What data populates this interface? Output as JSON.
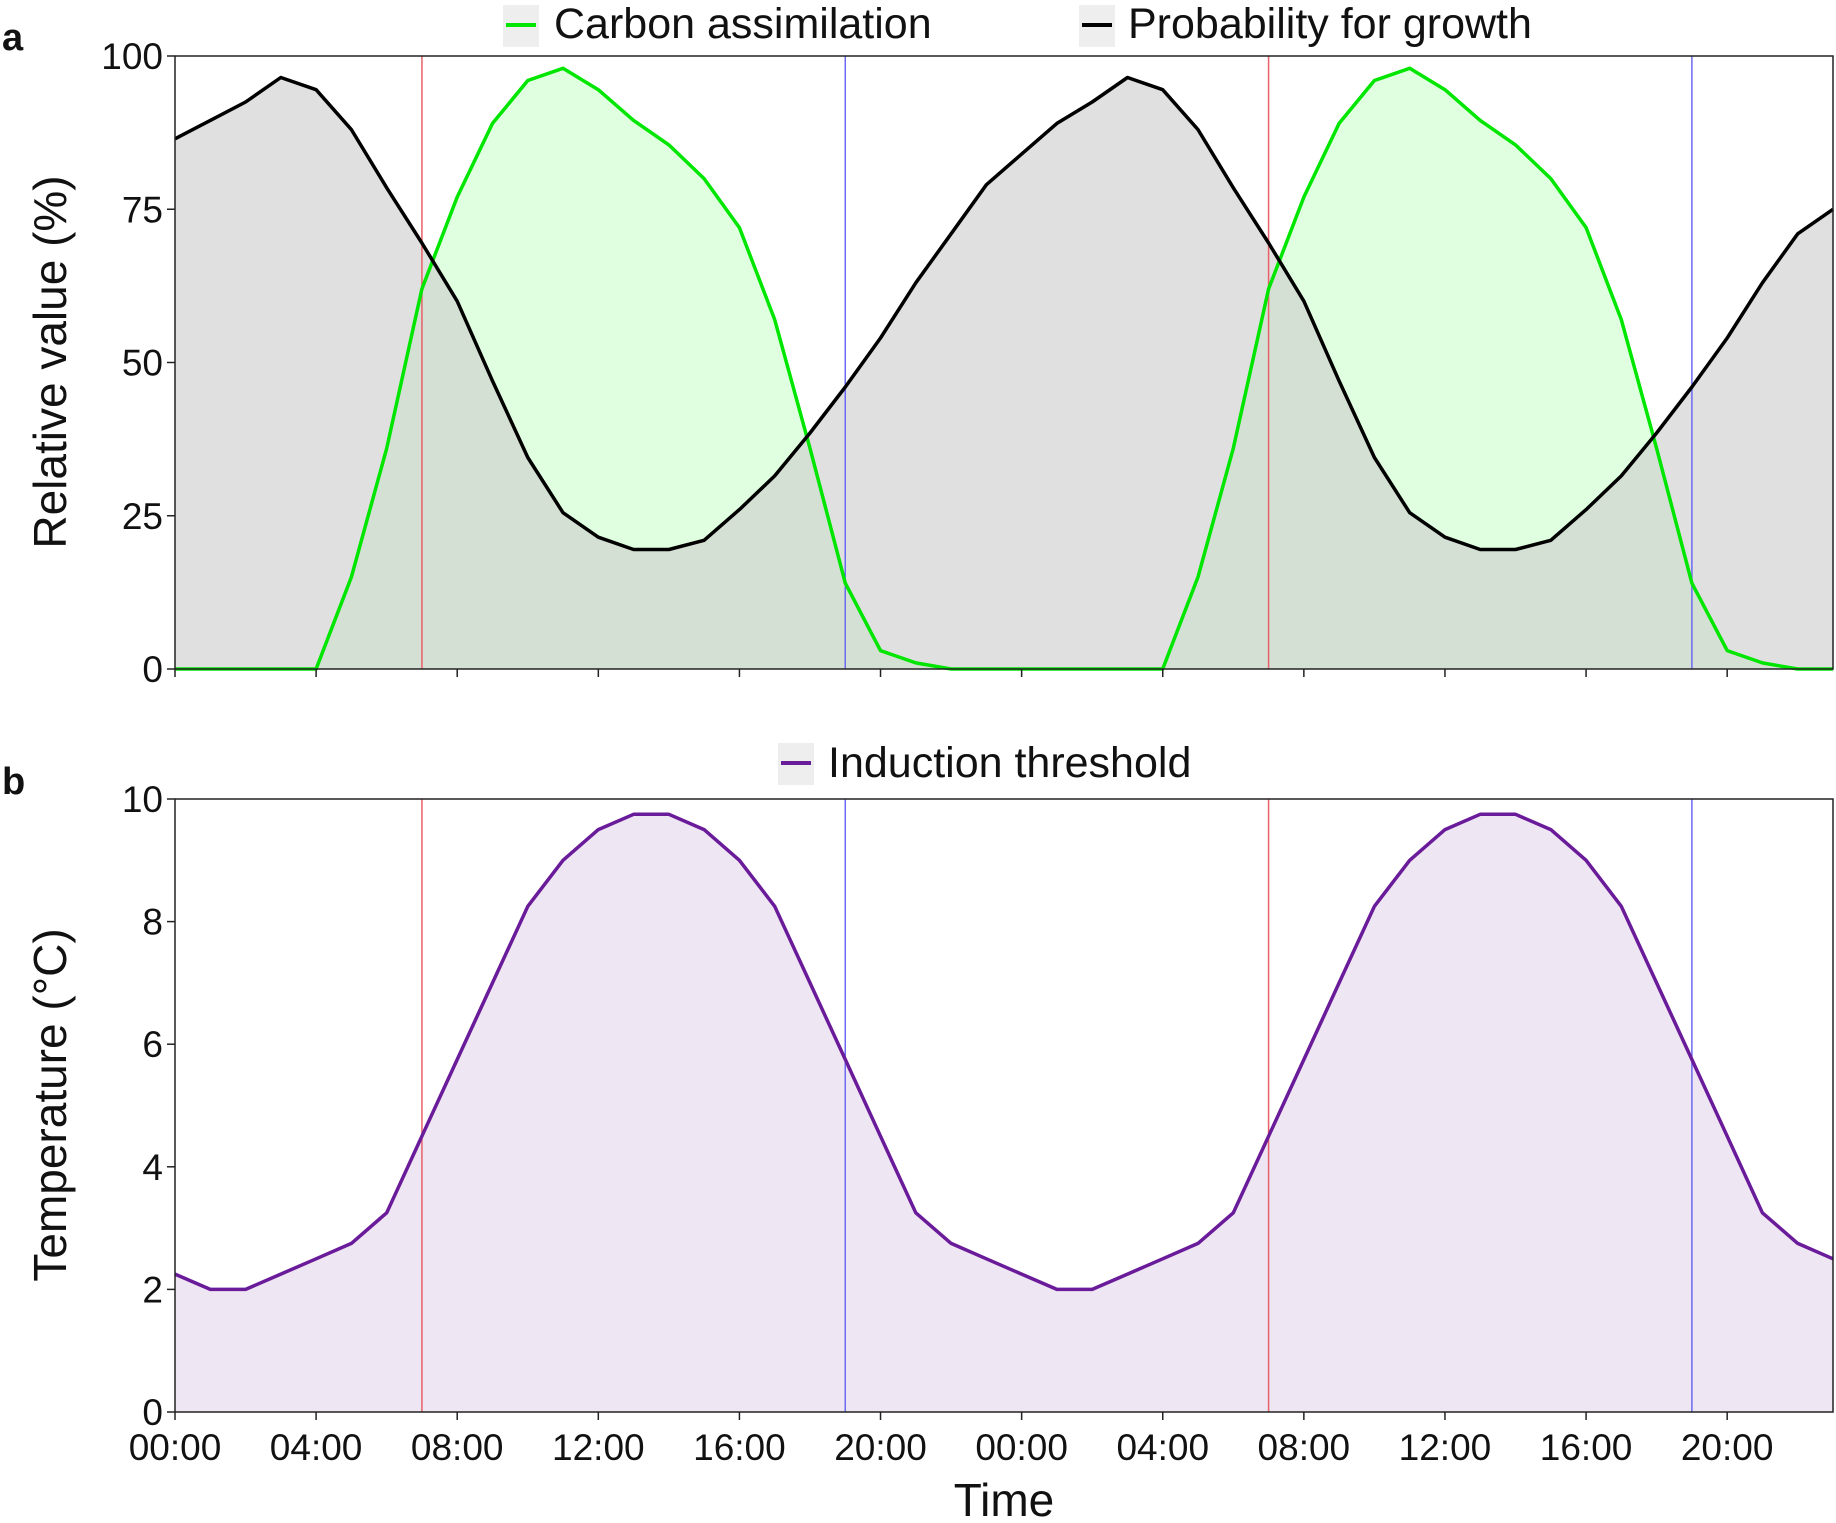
{
  "chart_data": [
    {
      "panel": "a",
      "type": "area",
      "ylabel": "Relative value (%)",
      "ylim": [
        0,
        100
      ],
      "yticks": [
        0,
        25,
        50,
        75,
        100
      ],
      "xlim": [
        0,
        47
      ],
      "x_tick_hours": [
        0,
        4,
        8,
        12,
        16,
        20,
        24,
        28,
        32,
        36,
        40,
        44
      ],
      "markers": {
        "sunrise": [
          7,
          31
        ],
        "sunset": [
          19,
          43
        ]
      },
      "series": [
        {
          "name": "Carbon assimilation",
          "color": "#00e600",
          "fill": "#ccffcc",
          "values": [
            0,
            0,
            0,
            0,
            0,
            15,
            36,
            62,
            77,
            89,
            96,
            98,
            94.5,
            89.5,
            85.5,
            80,
            72,
            57,
            36,
            14,
            3,
            1,
            0,
            0,
            0,
            0,
            0,
            0,
            0,
            15,
            36,
            62,
            77,
            89,
            96,
            98,
            94.5,
            89.5,
            85.5,
            80,
            72,
            57,
            36,
            14,
            3,
            1,
            0,
            0
          ]
        },
        {
          "name": "Probability for growth",
          "color": "#000000",
          "fill": "#cccccc",
          "values": [
            86.5,
            89.5,
            92.5,
            96.5,
            94.5,
            88,
            78.5,
            69.5,
            60,
            47,
            34.5,
            25.5,
            21.5,
            19.5,
            19.5,
            21,
            26,
            31.5,
            38.5,
            46,
            54,
            63,
            71,
            79,
            84,
            89,
            92.5,
            96.5,
            94.5,
            88,
            78.5,
            69.5,
            60,
            47,
            34.5,
            25.5,
            21.5,
            19.5,
            19.5,
            21,
            26,
            31.5,
            38.5,
            46,
            54,
            63,
            71,
            75
          ]
        }
      ]
    },
    {
      "panel": "b",
      "type": "area",
      "xlabel": "Time",
      "ylabel": "Temperature (°C)",
      "ylim": [
        0,
        10
      ],
      "yticks": [
        0,
        2,
        4,
        6,
        8,
        10
      ],
      "xlim": [
        0,
        47
      ],
      "x_tick_hours": [
        0,
        4,
        8,
        12,
        16,
        20,
        24,
        28,
        32,
        36,
        40,
        44
      ],
      "xticklabels": [
        "00:00",
        "04:00",
        "08:00",
        "12:00",
        "16:00",
        "20:00",
        "00:00",
        "04:00",
        "08:00",
        "12:00",
        "16:00",
        "20:00"
      ],
      "markers": {
        "sunrise": [
          7,
          31
        ],
        "sunset": [
          19,
          43
        ]
      },
      "series": [
        {
          "name": "Induction threshold",
          "color": "#6a1b9a",
          "fill": "#ede3f2",
          "values": [
            2.25,
            2,
            2,
            2.25,
            2.5,
            2.75,
            3.25,
            4.5,
            5.75,
            7,
            8.25,
            9,
            9.5,
            9.75,
            9.75,
            9.5,
            9,
            8.25,
            7,
            5.75,
            4.5,
            3.25,
            2.75,
            2.5,
            2.25,
            2,
            2,
            2.25,
            2.5,
            2.75,
            3.25,
            4.5,
            5.75,
            7,
            8.25,
            9,
            9.5,
            9.75,
            9.75,
            9.5,
            9,
            8.25,
            7,
            5.75,
            4.5,
            3.25,
            2.75,
            2.5
          ]
        }
      ]
    }
  ],
  "colors": {
    "sunrise_line": "#e8606a",
    "sunset_line": "#6b6bf0",
    "legend_box": "#eeeeee"
  },
  "panel_labels": [
    "a",
    "b"
  ]
}
